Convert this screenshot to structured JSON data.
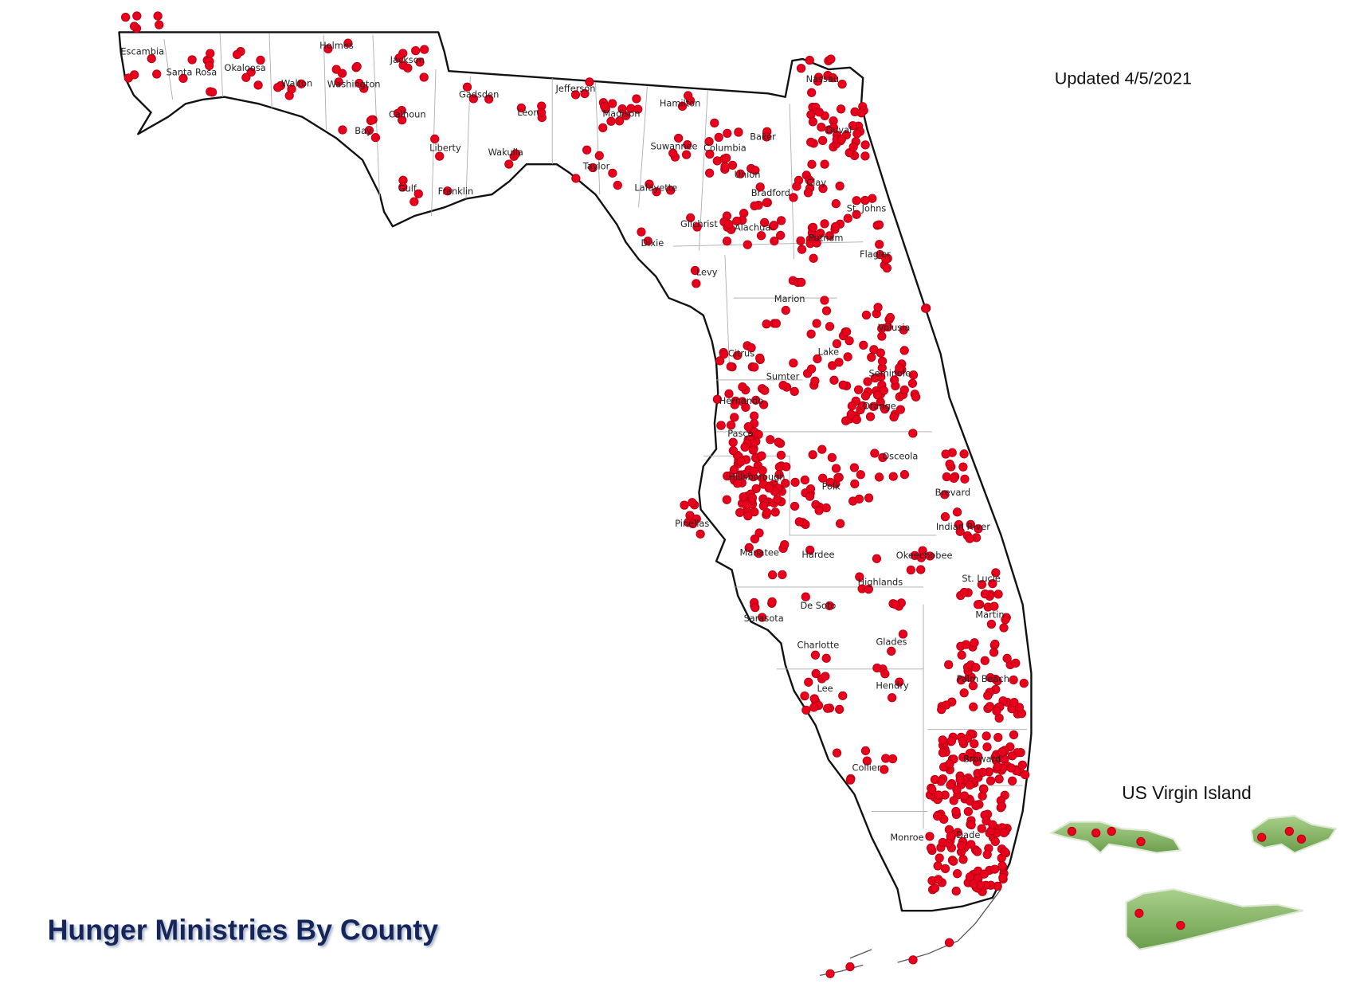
{
  "title": "Hunger Ministries By County",
  "updated": "Updated 4/5/2021",
  "inset_label": "US Virgin Island",
  "counties": [
    "Escambia",
    "Santa Rosa",
    "Okaloosa",
    "Walton",
    "Holmes",
    "Washington",
    "Jackson",
    "Calhoun",
    "Bay",
    "Gulf",
    "Liberty",
    "Franklin",
    "Gadsden",
    "Leon",
    "Wakulla",
    "Jefferson",
    "Madison",
    "Taylor",
    "Hamilton",
    "Suwannee",
    "Lafayette",
    "Columbia",
    "Baker",
    "Union",
    "Bradford",
    "Nassau",
    "Duval",
    "Clay",
    "St. Johns",
    "Putnam",
    "Flagler",
    "Alachua",
    "Gilchrist",
    "Dixie",
    "Levy",
    "Marion",
    "Volusia",
    "Citrus",
    "Lake",
    "Sumter",
    "Seminole",
    "Hernando",
    "Orange",
    "Pasco",
    "Osceola",
    "Hillsborough",
    "Polk",
    "Brevard",
    "Pinellas",
    "Indian River",
    "Manatee",
    "Hardee",
    "Okeechobee",
    "St. Lucie",
    "Highlands",
    "De Soto",
    "Martin",
    "Sarasota",
    "Charlotte",
    "Glades",
    "Palm Beach",
    "Lee",
    "Hendry",
    "Broward",
    "Collier",
    "Dade",
    "Monroe"
  ]
}
